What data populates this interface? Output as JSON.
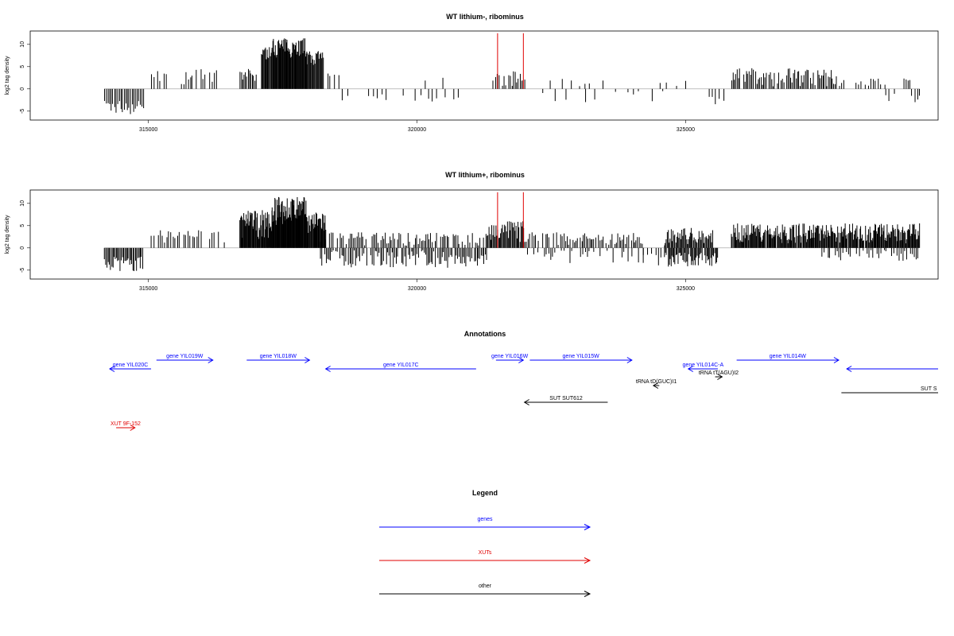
{
  "chart_data": [
    {
      "type": "bar",
      "title": "WT lithium-, ribominus",
      "ylabel": "log2 tag density",
      "xlim": [
        312800,
        329700
      ],
      "ylim": [
        -7,
        13
      ],
      "yticks": [
        -5,
        0,
        5,
        10
      ],
      "xticks": [
        315000,
        320000,
        325000
      ],
      "grid": false,
      "baseline": 0,
      "tracks": [
        {
          "start": 314180,
          "end": 314900,
          "min": -6.0,
          "max": -2.5,
          "step": 30
        },
        {
          "start": 315050,
          "end": 316300,
          "min": 1.0,
          "max": 4.5,
          "step": 40,
          "density": 0.75
        },
        {
          "start": 316700,
          "end": 317000,
          "min": 1.0,
          "max": 4.5,
          "step": 25
        },
        {
          "start": 317100,
          "end": 317300,
          "min": 6.5,
          "max": 9.5,
          "step": 15
        },
        {
          "start": 317300,
          "end": 317950,
          "min": 7.0,
          "max": 11.5,
          "step": 12
        },
        {
          "start": 317950,
          "end": 318250,
          "min": 5.0,
          "max": 8.5,
          "step": 15
        },
        {
          "start": 318250,
          "end": 318550,
          "min": 1.0,
          "max": 3.5,
          "step": 40,
          "density": 0.8
        },
        {
          "start": 318600,
          "end": 321100,
          "min": -3.5,
          "max": -0.5,
          "step": 80,
          "density": 0.55
        },
        {
          "start": 319850,
          "end": 320550,
          "min": 0.5,
          "max": 2.5,
          "step": 90,
          "density": 0.4
        },
        {
          "start": 321400,
          "end": 322000,
          "min": 0.5,
          "max": 4.0,
          "step": 30,
          "density": 0.85
        },
        {
          "start": 322100,
          "end": 323500,
          "min": 0.5,
          "max": 2.5,
          "step": 110,
          "density": 0.5
        },
        {
          "start": 322300,
          "end": 324600,
          "min": -3.5,
          "max": -0.5,
          "step": 90,
          "density": 0.55
        },
        {
          "start": 324500,
          "end": 325000,
          "min": 0.5,
          "max": 2.0,
          "step": 100,
          "density": 0.4
        },
        {
          "start": 325200,
          "end": 325700,
          "min": -4.0,
          "max": -1.0,
          "step": 70,
          "density": 0.7
        },
        {
          "start": 325850,
          "end": 327800,
          "min": 0.5,
          "max": 4.8,
          "step": 25,
          "density": 0.9
        },
        {
          "start": 327800,
          "end": 328700,
          "min": 0.5,
          "max": 3.0,
          "step": 45,
          "density": 0.8
        },
        {
          "start": 328700,
          "end": 329000,
          "min": -3.0,
          "max": -1.0,
          "step": 80,
          "density": 0.6
        },
        {
          "start": 329050,
          "end": 329200,
          "min": 1.0,
          "max": 2.5,
          "step": 40
        },
        {
          "start": 329200,
          "end": 329350,
          "min": -3.5,
          "max": -1.0,
          "step": 50
        }
      ],
      "highlights": [
        {
          "x": 321500,
          "y": 12.5,
          "color": "#e00000"
        },
        {
          "x": 321980,
          "y": 12.5,
          "color": "#e00000"
        }
      ]
    },
    {
      "type": "bar",
      "title": "WT lithium+, ribominus",
      "ylabel": "log2 tag density",
      "xlim": [
        312800,
        329700
      ],
      "ylim": [
        -7,
        13
      ],
      "yticks": [
        -5,
        0,
        5,
        10
      ],
      "xticks": [
        315000,
        320000,
        325000
      ],
      "grid": false,
      "baseline": 0,
      "tracks": [
        {
          "start": 314180,
          "end": 314900,
          "min": -5.5,
          "max": -2.0,
          "step": 22
        },
        {
          "start": 315050,
          "end": 316300,
          "min": 1.0,
          "max": 4.0,
          "step": 40,
          "density": 0.75
        },
        {
          "start": 316300,
          "end": 316700,
          "min": 0.5,
          "max": 2.0,
          "step": 80,
          "density": 0.4
        },
        {
          "start": 316700,
          "end": 317300,
          "min": 2.0,
          "max": 8.5,
          "step": 12
        },
        {
          "start": 317300,
          "end": 317950,
          "min": 5.0,
          "max": 11.5,
          "step": 10
        },
        {
          "start": 317950,
          "end": 318300,
          "min": 3.0,
          "max": 8.0,
          "step": 12
        },
        {
          "start": 318200,
          "end": 321300,
          "min": 0.5,
          "max": 3.5,
          "step": 28,
          "density": 0.8
        },
        {
          "start": 318200,
          "end": 321300,
          "min": -4.5,
          "max": -0.5,
          "step": 26,
          "density": 0.85
        },
        {
          "start": 321300,
          "end": 322000,
          "min": 1.0,
          "max": 6.0,
          "step": 18
        },
        {
          "start": 322000,
          "end": 324200,
          "min": 0.5,
          "max": 3.5,
          "step": 28,
          "density": 0.75
        },
        {
          "start": 322000,
          "end": 324200,
          "min": -3.5,
          "max": -0.5,
          "step": 40,
          "density": 0.6
        },
        {
          "start": 324200,
          "end": 324600,
          "min": -4.5,
          "max": -1.0,
          "step": 40,
          "density": 0.6
        },
        {
          "start": 324600,
          "end": 325500,
          "min": 0.5,
          "max": 4.5,
          "step": 18
        },
        {
          "start": 324600,
          "end": 325600,
          "min": -4.5,
          "max": -1.0,
          "step": 18,
          "density": 0.9
        },
        {
          "start": 325850,
          "end": 329350,
          "min": 1.0,
          "max": 5.5,
          "step": 14,
          "density": 0.95
        },
        {
          "start": 327500,
          "end": 329350,
          "min": -3.0,
          "max": -0.5,
          "step": 35,
          "density": 0.7
        }
      ],
      "highlights": [
        {
          "x": 321500,
          "y": 12.5,
          "color": "#e00000"
        },
        {
          "x": 321980,
          "y": 12.5,
          "color": "#e00000"
        }
      ]
    }
  ],
  "annotations": {
    "title": "Annotations",
    "features": [
      {
        "label": "gene YIL020C",
        "x1": 314280,
        "x2": 315050,
        "dir": "left",
        "row": 1,
        "kind": "gene"
      },
      {
        "label": "gene YIL019W",
        "x1": 315150,
        "x2": 316200,
        "dir": "right",
        "row": 0,
        "kind": "gene"
      },
      {
        "label": "gene YIL018W",
        "x1": 316830,
        "x2": 318000,
        "dir": "right",
        "row": 0,
        "kind": "gene"
      },
      {
        "label": "gene YIL017C",
        "x1": 318300,
        "x2": 321100,
        "dir": "left",
        "row": 1,
        "kind": "gene"
      },
      {
        "label": "gene YIL016W",
        "x1": 321470,
        "x2": 321980,
        "dir": "right",
        "row": 0,
        "kind": "gene"
      },
      {
        "label": "gene YIL015W",
        "x1": 322100,
        "x2": 324000,
        "dir": "right",
        "row": 0,
        "kind": "gene"
      },
      {
        "label": "gene YIL014C-A",
        "x1": 325050,
        "x2": 325600,
        "dir": "left",
        "row": 1,
        "kind": "gene"
      },
      {
        "label": "gene YIL014W",
        "x1": 325950,
        "x2": 327850,
        "dir": "right",
        "row": 0,
        "kind": "gene"
      },
      {
        "label": "",
        "x1": 328000,
        "x2": 329700,
        "dir": "left",
        "row": 1,
        "kind": "gene"
      },
      {
        "label": "tRNA tD(GUC)I1",
        "x1": 324400,
        "x2": 324510,
        "dir": "left",
        "row": 3,
        "kind": "other"
      },
      {
        "label": "tRNA tT(AGU)I2",
        "x1": 325550,
        "x2": 325680,
        "dir": "right",
        "row": 2,
        "kind": "other"
      },
      {
        "label": "SUT SUT612",
        "x1": 322000,
        "x2": 323550,
        "dir": "left",
        "row": 5,
        "kind": "other"
      },
      {
        "label": "SUT S",
        "x1": 327900,
        "x2": 329700,
        "dir": "none",
        "row": 4,
        "kind": "other"
      },
      {
        "label": "XUT 9F-152",
        "x1": 314400,
        "x2": 314750,
        "dir": "right",
        "row": 8,
        "kind": "xut"
      }
    ]
  },
  "legend": {
    "title": "Legend",
    "items": [
      {
        "label": "genes",
        "color": "#0000ff"
      },
      {
        "label": "XUTs",
        "color": "#e00000"
      },
      {
        "label": "other",
        "color": "#000000"
      }
    ]
  },
  "colors": {
    "gene": "#0000ff",
    "xut": "#e00000",
    "other": "#000000",
    "track": "#000000",
    "frame": "#000000",
    "baseline": "#9a9a9a"
  }
}
